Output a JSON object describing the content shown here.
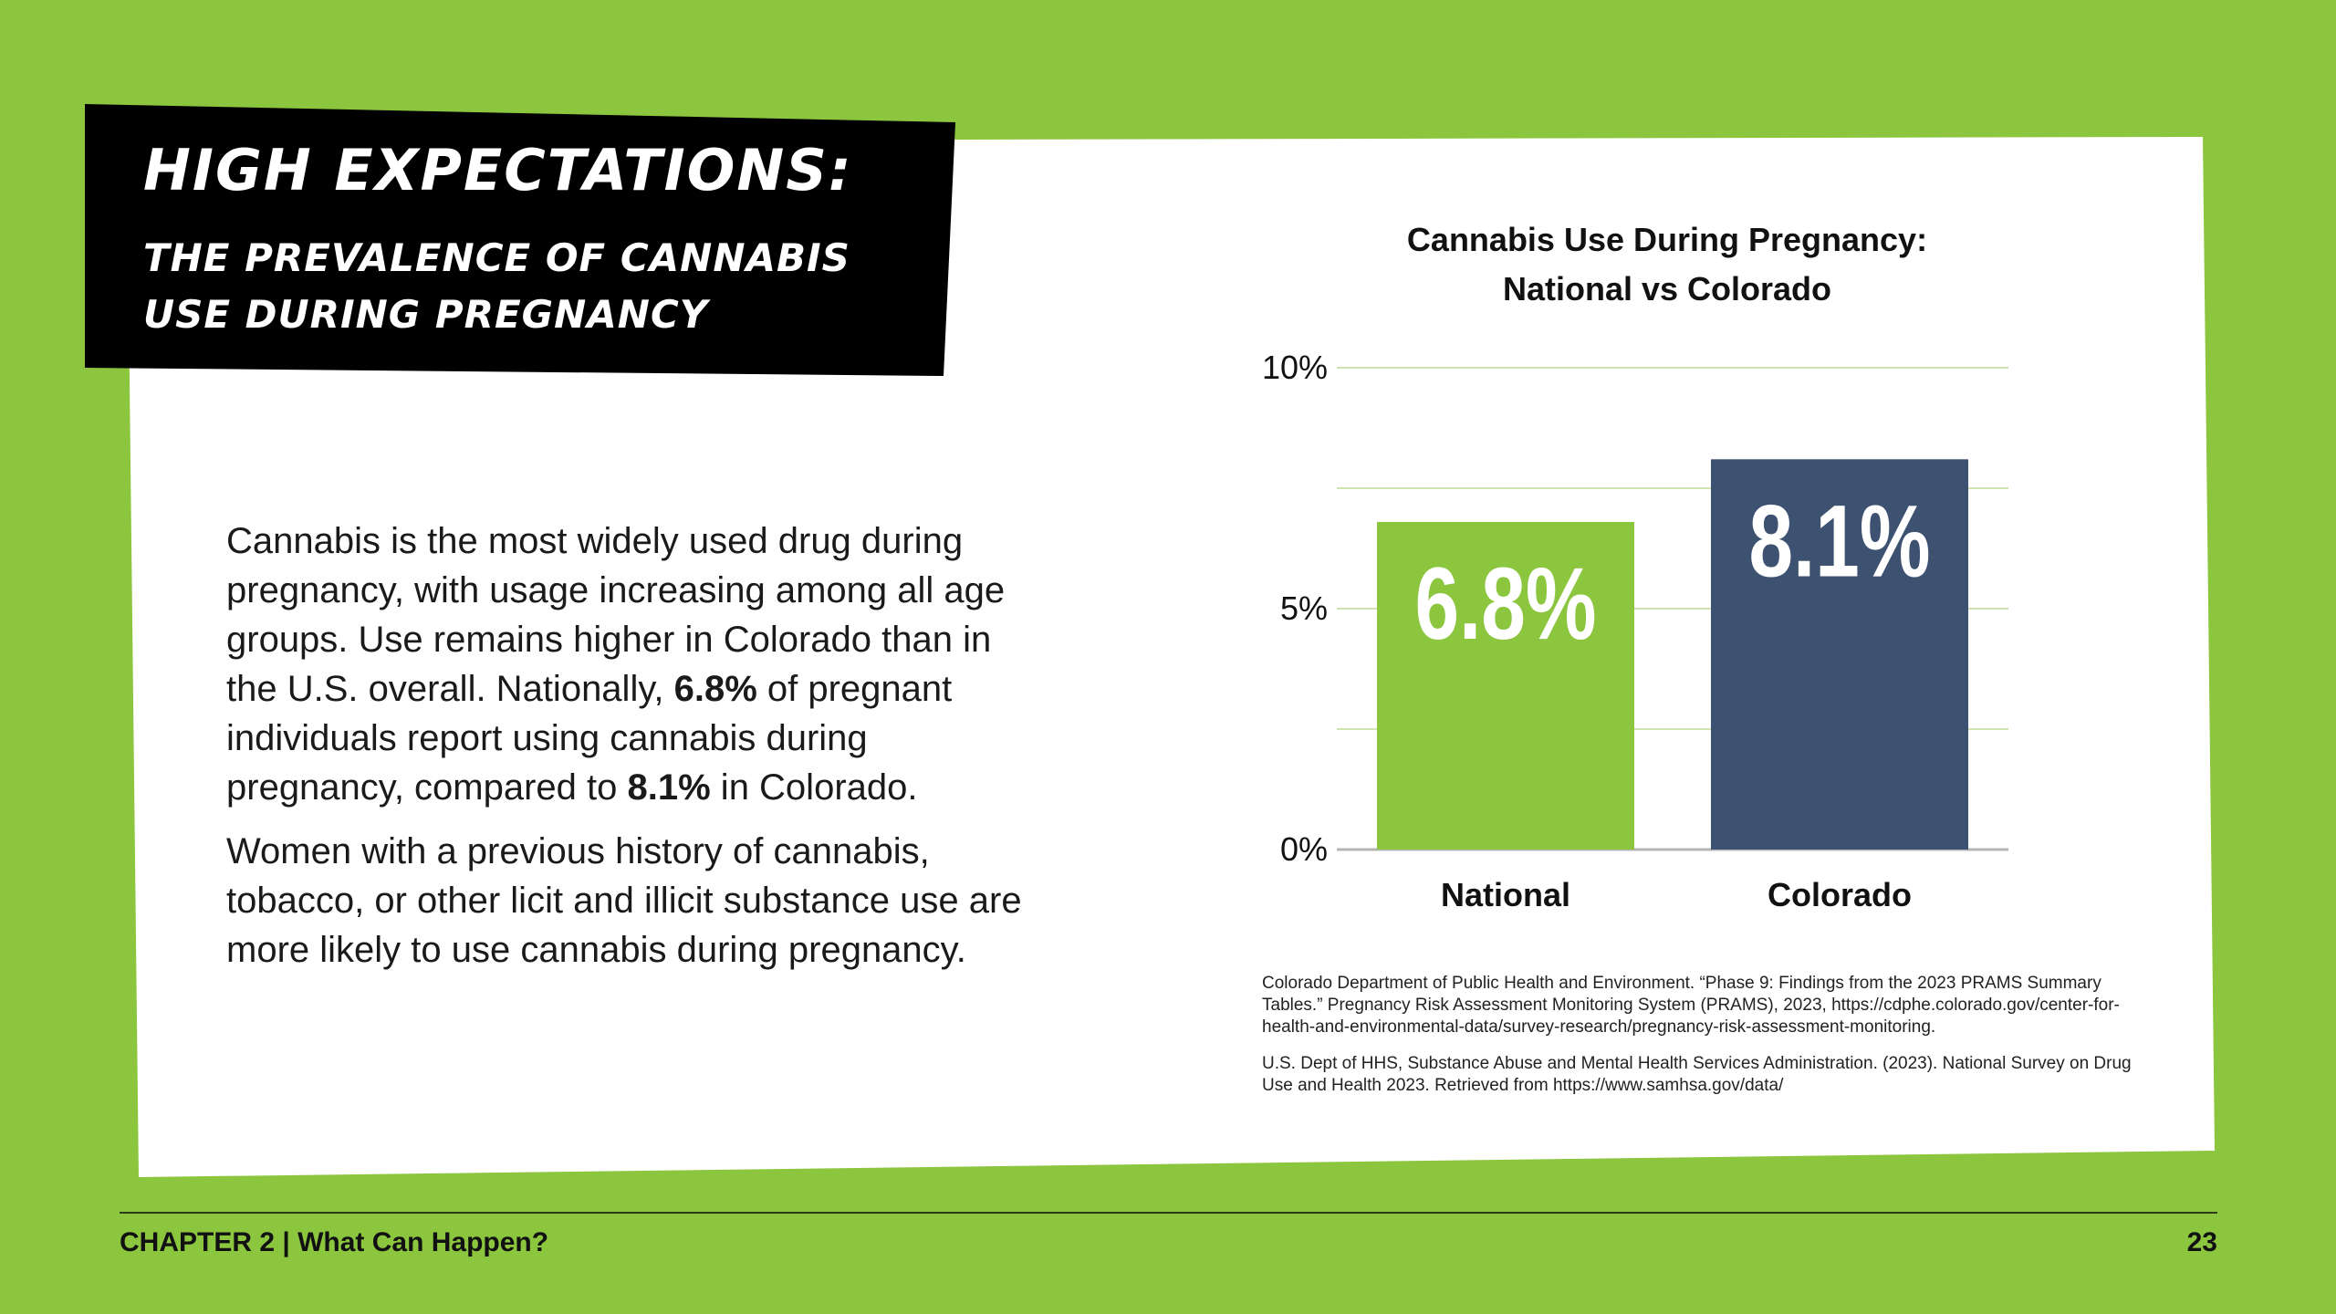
{
  "header": {
    "title": "High Expectations:",
    "subtitle": "The Prevalence of Cannabis Use During Pregnancy"
  },
  "body": {
    "paragraphs": [
      {
        "runs": [
          {
            "text": "Cannabis is the most widely used drug during pregnancy, with usage increasing among all age groups. Use remains higher in Colorado than in the U.S. overall. Nationally, ",
            "bold": false
          },
          {
            "text": "6.8%",
            "bold": true
          },
          {
            "text": " of pregnant individuals report using cannabis during pregnancy, compared to ",
            "bold": false
          },
          {
            "text": "8.1%",
            "bold": true
          },
          {
            "text": " in Colorado.",
            "bold": false
          }
        ]
      },
      {
        "runs": [
          {
            "text": "Women with a previous history of cannabis, tobacco, or other licit and illicit substance use are more likely to use cannabis during pregnancy.",
            "bold": false
          }
        ]
      }
    ]
  },
  "chart_data": {
    "type": "bar",
    "title": "Cannabis Use During Pregnancy: National vs Colorado",
    "categories": [
      "National",
      "Colorado"
    ],
    "values": [
      6.8,
      8.1
    ],
    "value_labels": [
      "6.8%",
      "8.1%"
    ],
    "colors": [
      "#8cc63f",
      "#3d5170"
    ],
    "ylim": [
      0,
      10
    ],
    "yticks": [
      {
        "value": 0,
        "label": "0%"
      },
      {
        "value": 2.5,
        "label": null
      },
      {
        "value": 5,
        "label": "5%"
      },
      {
        "value": 7.5,
        "label": null
      },
      {
        "value": 10,
        "label": "10%"
      }
    ],
    "grid": true
  },
  "sources": [
    "Colorado Department of Public Health and Environment. “Phase 9: Findings from the 2023 PRAMS Summary Tables.” Pregnancy Risk Assessment Monitoring System (PRAMS), 2023, https://cdphe.colorado.gov/center-for-health-and-environmental-data/survey-research/pregnancy-risk-assessment-monitoring.",
    "U.S. Dept of HHS, Substance Abuse and Mental Health Services Administration. (2023). National Survey on Drug Use and Health 2023. Retrieved from https://www.samhsa.gov/data/"
  ],
  "footer": {
    "chapter": "CHAPTER 2 | What Can Happen?",
    "page": "23"
  }
}
